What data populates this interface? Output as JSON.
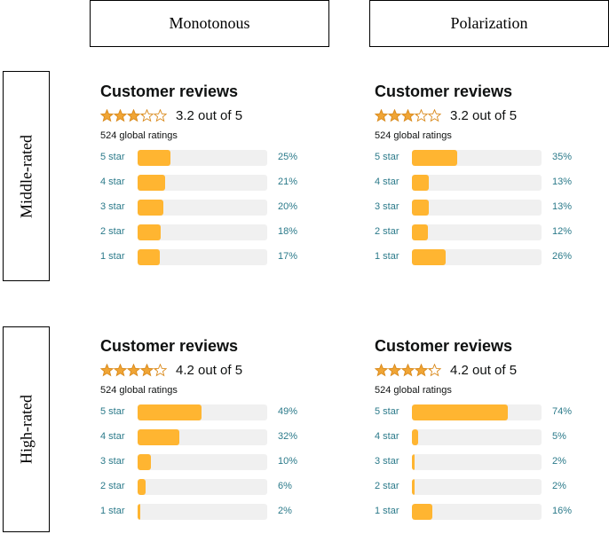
{
  "columns": [
    "Monotonous",
    "Polarization"
  ],
  "rows": [
    "Middle-rated",
    "High-rated"
  ],
  "colors": {
    "star": "#f0a535",
    "bar_fill": "#ffb531",
    "bar_track": "#f0f0f0",
    "link": "#2b7a8a"
  },
  "panels": [
    {
      "title": "Customer reviews",
      "rating_value": 3.2,
      "rating_text": "3.2 out of 5",
      "global_ratings": "524 global ratings",
      "bars": [
        {
          "label": "5 star",
          "percent": 25,
          "pct_text": "25%"
        },
        {
          "label": "4 star",
          "percent": 21,
          "pct_text": "21%"
        },
        {
          "label": "3 star",
          "percent": 20,
          "pct_text": "20%"
        },
        {
          "label": "2 star",
          "percent": 18,
          "pct_text": "18%"
        },
        {
          "label": "1 star",
          "percent": 17,
          "pct_text": "17%"
        }
      ]
    },
    {
      "title": "Customer reviews",
      "rating_value": 3.2,
      "rating_text": "3.2 out of 5",
      "global_ratings": "524 global ratings",
      "bars": [
        {
          "label": "5 star",
          "percent": 35,
          "pct_text": "35%"
        },
        {
          "label": "4 star",
          "percent": 13,
          "pct_text": "13%"
        },
        {
          "label": "3 star",
          "percent": 13,
          "pct_text": "13%"
        },
        {
          "label": "2 star",
          "percent": 12,
          "pct_text": "12%"
        },
        {
          "label": "1 star",
          "percent": 26,
          "pct_text": "26%"
        }
      ]
    },
    {
      "title": "Customer reviews",
      "rating_value": 4.2,
      "rating_text": "4.2 out of 5",
      "global_ratings": "524 global ratings",
      "bars": [
        {
          "label": "5 star",
          "percent": 49,
          "pct_text": "49%"
        },
        {
          "label": "4 star",
          "percent": 32,
          "pct_text": "32%"
        },
        {
          "label": "3 star",
          "percent": 10,
          "pct_text": "10%"
        },
        {
          "label": "2 star",
          "percent": 6,
          "pct_text": "6%"
        },
        {
          "label": "1 star",
          "percent": 2,
          "pct_text": "2%"
        }
      ]
    },
    {
      "title": "Customer reviews",
      "rating_value": 4.2,
      "rating_text": "4.2 out of 5",
      "global_ratings": "524 global ratings",
      "bars": [
        {
          "label": "5 star",
          "percent": 74,
          "pct_text": "74%"
        },
        {
          "label": "4 star",
          "percent": 5,
          "pct_text": "5%"
        },
        {
          "label": "3 star",
          "percent": 2,
          "pct_text": "2%"
        },
        {
          "label": "2 star",
          "percent": 2,
          "pct_text": "2%"
        },
        {
          "label": "1 star",
          "percent": 16,
          "pct_text": "16%"
        }
      ]
    }
  ]
}
